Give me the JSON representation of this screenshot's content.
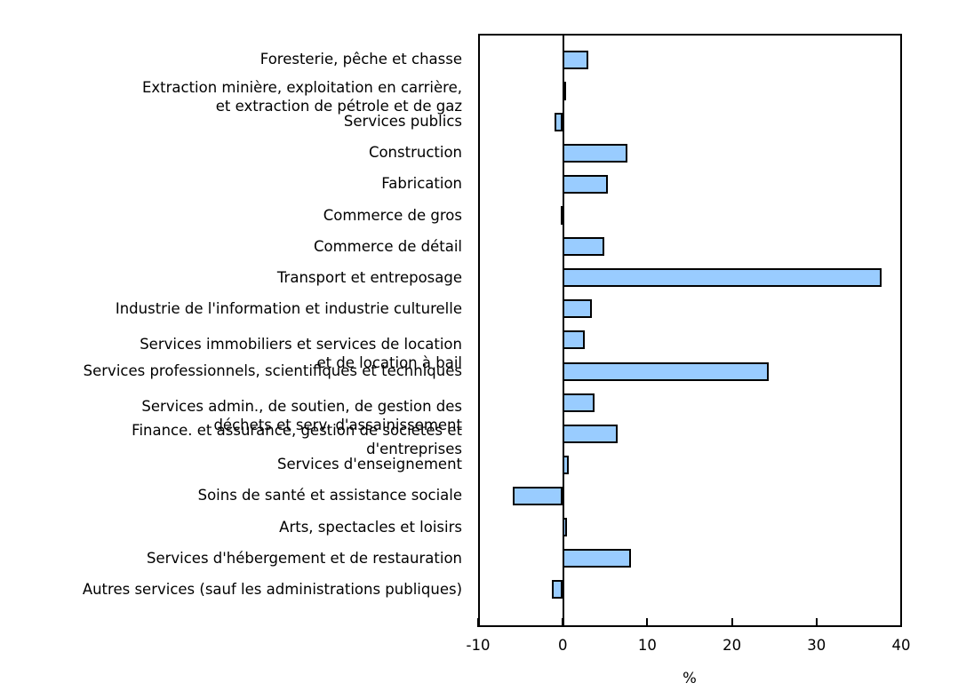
{
  "chart_data": {
    "type": "bar",
    "orientation": "horizontal",
    "title": "",
    "xlabel": "%",
    "ylabel": "",
    "xlim": [
      -10,
      40
    ],
    "xticks": [
      -10,
      0,
      10,
      20,
      30,
      40
    ],
    "grid": false,
    "legend": null,
    "bar_color": "#99ccff",
    "categories": [
      "Foresterie, pêche et chasse",
      "Extraction minière, exploitation en carrière,\net extraction de pétrole et de gaz",
      "Services publics",
      "Construction",
      "Fabrication",
      "Commerce de gros",
      "Commerce de détail",
      "Transport et entreposage",
      "Industrie de l'information et industrie culturelle",
      "Services immobiliers et services de location\net de location à bail",
      "Services professionnels, scientifiques et techniques",
      "Services admin., de soutien, de gestion des\ndéchets et serv. d'assainissement",
      "Finance. et assurance, gestion de sociétés et\nd'entreprises",
      "Services d'enseignement",
      "Soins de santé et assistance sociale",
      "Arts, spectacles et loisirs",
      "Services d'hébergement et de restauration",
      "Autres services (sauf les administrations publiques)"
    ],
    "values": [
      3.0,
      0.3,
      -1.0,
      7.7,
      5.3,
      -0.2,
      4.9,
      37.7,
      3.4,
      2.6,
      24.4,
      3.8,
      6.5,
      0.7,
      -5.9,
      0.5,
      8.1,
      -1.3
    ]
  },
  "label_offsets": [
    0,
    -4,
    0,
    0,
    0,
    0,
    0,
    0,
    0,
    4,
    0,
    4,
    -4,
    0,
    0,
    0,
    0,
    0
  ]
}
